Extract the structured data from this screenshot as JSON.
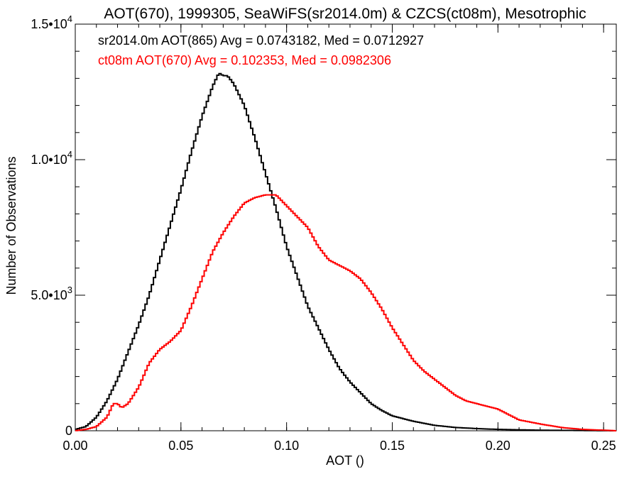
{
  "chart_data": {
    "type": "line",
    "title": "AOT(670), 1999305, SeaWiFS(sr2014.0m) & CZCS(ct08m), Mesotrophic",
    "xlabel": "AOT ()",
    "ylabel": "Number of Observations",
    "xlim": [
      0.0,
      0.256
    ],
    "ylim": [
      0,
      15000
    ],
    "x_ticks": [
      {
        "value": 0.0,
        "label": "0.00"
      },
      {
        "value": 0.05,
        "label": "0.05"
      },
      {
        "value": 0.1,
        "label": "0.10"
      },
      {
        "value": 0.15,
        "label": "0.15"
      },
      {
        "value": 0.2,
        "label": "0.20"
      },
      {
        "value": 0.25,
        "label": "0.25"
      }
    ],
    "y_ticks": [
      {
        "value": 0,
        "mantissa": "0",
        "exponent": ""
      },
      {
        "value": 5000,
        "mantissa": "5.0•10",
        "exponent": "3"
      },
      {
        "value": 10000,
        "mantissa": "1.0•10",
        "exponent": "4"
      },
      {
        "value": 15000,
        "mantissa": "1.5•10",
        "exponent": "4"
      }
    ],
    "grid": false,
    "step_style": true,
    "series": [
      {
        "color": "#000000",
        "annotation": "sr2014.0m AOT(865) Avg = 0.0743182, Med = 0.0712927",
        "points": [
          [
            0.0,
            50
          ],
          [
            0.005,
            150
          ],
          [
            0.01,
            500
          ],
          [
            0.015,
            1100
          ],
          [
            0.02,
            1900
          ],
          [
            0.025,
            2900
          ],
          [
            0.03,
            3900
          ],
          [
            0.035,
            5000
          ],
          [
            0.04,
            6300
          ],
          [
            0.045,
            7600
          ],
          [
            0.05,
            8900
          ],
          [
            0.055,
            10300
          ],
          [
            0.06,
            11600
          ],
          [
            0.065,
            12700
          ],
          [
            0.068,
            13200
          ],
          [
            0.07,
            13100
          ],
          [
            0.072,
            13100
          ],
          [
            0.075,
            12800
          ],
          [
            0.08,
            12000
          ],
          [
            0.085,
            10800
          ],
          [
            0.09,
            9500
          ],
          [
            0.095,
            8200
          ],
          [
            0.1,
            6800
          ],
          [
            0.105,
            5700
          ],
          [
            0.11,
            4600
          ],
          [
            0.115,
            3800
          ],
          [
            0.12,
            3000
          ],
          [
            0.125,
            2300
          ],
          [
            0.13,
            1800
          ],
          [
            0.135,
            1400
          ],
          [
            0.14,
            1000
          ],
          [
            0.145,
            750
          ],
          [
            0.15,
            550
          ],
          [
            0.16,
            350
          ],
          [
            0.17,
            200
          ],
          [
            0.18,
            120
          ],
          [
            0.19,
            80
          ],
          [
            0.2,
            50
          ],
          [
            0.22,
            20
          ],
          [
            0.256,
            0
          ]
        ]
      },
      {
        "color": "#ff0000",
        "annotation": "ct08m AOT(670) Avg = 0.102353, Med = 0.0982306",
        "points": [
          [
            0.0,
            0
          ],
          [
            0.005,
            50
          ],
          [
            0.01,
            150
          ],
          [
            0.015,
            500
          ],
          [
            0.018,
            1000
          ],
          [
            0.02,
            1000
          ],
          [
            0.022,
            850
          ],
          [
            0.025,
            1000
          ],
          [
            0.03,
            1600
          ],
          [
            0.035,
            2500
          ],
          [
            0.04,
            3000
          ],
          [
            0.045,
            3300
          ],
          [
            0.05,
            3700
          ],
          [
            0.055,
            4600
          ],
          [
            0.06,
            5600
          ],
          [
            0.065,
            6600
          ],
          [
            0.07,
            7300
          ],
          [
            0.075,
            7900
          ],
          [
            0.08,
            8400
          ],
          [
            0.085,
            8600
          ],
          [
            0.09,
            8700
          ],
          [
            0.095,
            8700
          ],
          [
            0.1,
            8300
          ],
          [
            0.105,
            7900
          ],
          [
            0.11,
            7500
          ],
          [
            0.115,
            6800
          ],
          [
            0.12,
            6300
          ],
          [
            0.125,
            6100
          ],
          [
            0.13,
            5900
          ],
          [
            0.135,
            5600
          ],
          [
            0.14,
            5100
          ],
          [
            0.145,
            4500
          ],
          [
            0.15,
            3800
          ],
          [
            0.155,
            3200
          ],
          [
            0.16,
            2600
          ],
          [
            0.165,
            2200
          ],
          [
            0.17,
            1900
          ],
          [
            0.175,
            1600
          ],
          [
            0.18,
            1300
          ],
          [
            0.185,
            1100
          ],
          [
            0.19,
            1000
          ],
          [
            0.195,
            900
          ],
          [
            0.2,
            800
          ],
          [
            0.205,
            600
          ],
          [
            0.21,
            400
          ],
          [
            0.22,
            250
          ],
          [
            0.23,
            120
          ],
          [
            0.24,
            50
          ],
          [
            0.25,
            20
          ],
          [
            0.256,
            0
          ]
        ]
      }
    ]
  }
}
